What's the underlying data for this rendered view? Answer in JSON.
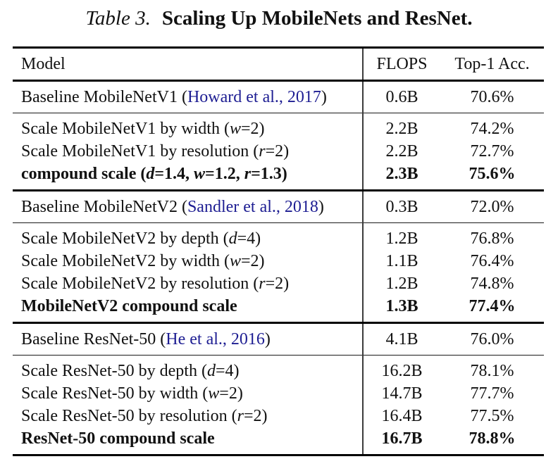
{
  "title": {
    "prefix": "Table 3.",
    "text": "Scaling Up MobileNets and ResNet."
  },
  "colors": {
    "citation": "#1d1d92",
    "text": "#111111",
    "rule_thick": "#000000",
    "rule_thin": "#1a1a1a",
    "divider": "#3c3c3c"
  },
  "table": {
    "headers": {
      "model": "Model",
      "flops": "FLOPS",
      "top1": "Top-1 Acc."
    },
    "sections": [
      {
        "type": "baseline",
        "rows": [
          {
            "model": [
              {
                "text": "Baseline MobileNetV1 ("
              },
              {
                "text": "Howard et al., 2017",
                "cite": true
              },
              {
                "text": ")"
              }
            ],
            "flops": "0.6B",
            "top1": "70.6%",
            "bold": false
          }
        ]
      },
      {
        "type": "scales",
        "rows": [
          {
            "model": [
              {
                "text": "Scale MobileNetV1 by width ("
              },
              {
                "text": "w",
                "math": true
              },
              {
                "text": "=2)"
              }
            ],
            "flops": "2.2B",
            "top1": "74.2%",
            "bold": false
          },
          {
            "model": [
              {
                "text": "Scale MobileNetV1 by resolution ("
              },
              {
                "text": "r",
                "math": true
              },
              {
                "text": "=2)"
              }
            ],
            "flops": "2.2B",
            "top1": "72.7%",
            "bold": false
          },
          {
            "model": [
              {
                "text": "compound scale ("
              },
              {
                "text": "d",
                "math": true
              },
              {
                "text": "=1.4, "
              },
              {
                "text": "w",
                "math": true
              },
              {
                "text": "=1.2, "
              },
              {
                "text": "r",
                "math": true
              },
              {
                "text": "=1.3)"
              }
            ],
            "flops": "2.3B",
            "top1": "75.6%",
            "bold": true
          }
        ]
      },
      {
        "type": "baseline",
        "rows": [
          {
            "model": [
              {
                "text": "Baseline MobileNetV2 ("
              },
              {
                "text": "Sandler et al., 2018",
                "cite": true
              },
              {
                "text": ")"
              }
            ],
            "flops": "0.3B",
            "top1": "72.0%",
            "bold": false
          }
        ]
      },
      {
        "type": "scales",
        "rows": [
          {
            "model": [
              {
                "text": "Scale MobileNetV2 by depth ("
              },
              {
                "text": "d",
                "math": true
              },
              {
                "text": "=4)"
              }
            ],
            "flops": "1.2B",
            "top1": "76.8%",
            "bold": false
          },
          {
            "model": [
              {
                "text": "Scale MobileNetV2 by width ("
              },
              {
                "text": "w",
                "math": true
              },
              {
                "text": "=2)"
              }
            ],
            "flops": "1.1B",
            "top1": "76.4%",
            "bold": false
          },
          {
            "model": [
              {
                "text": "Scale MobileNetV2 by resolution ("
              },
              {
                "text": "r",
                "math": true
              },
              {
                "text": "=2)"
              }
            ],
            "flops": "1.2B",
            "top1": "74.8%",
            "bold": false
          },
          {
            "model": [
              {
                "text": "MobileNetV2 compound scale"
              }
            ],
            "flops": "1.3B",
            "top1": "77.4%",
            "bold": true
          }
        ]
      },
      {
        "type": "baseline",
        "rows": [
          {
            "model": [
              {
                "text": "Baseline ResNet-50 ("
              },
              {
                "text": "He et al., 2016",
                "cite": true
              },
              {
                "text": ")"
              }
            ],
            "flops": "4.1B",
            "top1": "76.0%",
            "bold": false
          }
        ]
      },
      {
        "type": "scales",
        "rows": [
          {
            "model": [
              {
                "text": "Scale ResNet-50 by depth ("
              },
              {
                "text": "d",
                "math": true
              },
              {
                "text": "=4)"
              }
            ],
            "flops": "16.2B",
            "top1": "78.1%",
            "bold": false
          },
          {
            "model": [
              {
                "text": "Scale ResNet-50 by width ("
              },
              {
                "text": "w",
                "math": true
              },
              {
                "text": "=2)"
              }
            ],
            "flops": "14.7B",
            "top1": "77.7%",
            "bold": false
          },
          {
            "model": [
              {
                "text": "Scale ResNet-50 by resolution ("
              },
              {
                "text": "r",
                "math": true
              },
              {
                "text": "=2)"
              }
            ],
            "flops": "16.4B",
            "top1": "77.5%",
            "bold": false
          },
          {
            "model": [
              {
                "text": "ResNet-50 compound scale"
              }
            ],
            "flops": "16.7B",
            "top1": "78.8%",
            "bold": true
          }
        ]
      }
    ]
  }
}
